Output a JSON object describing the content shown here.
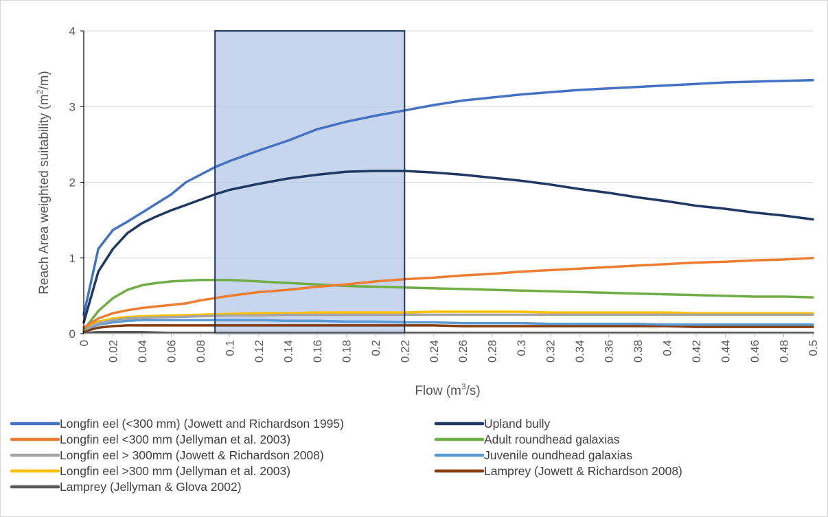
{
  "chart_data": {
    "type": "line",
    "title": "",
    "xlabel": "Flow (m³/s)",
    "xlabel_base": "Flow (m",
    "xlabel_sup": "3",
    "xlabel_end": "/s)",
    "ylabel": "Reach Area weighted suitability (m²/m)",
    "ylabel_base": "Reach Area weighted suitability (m",
    "ylabel_sup": "2",
    "ylabel_end": "/m)",
    "xlim": [
      0,
      0.5
    ],
    "ylim": [
      0,
      4
    ],
    "y_ticks": [
      "0",
      "1",
      "2",
      "3",
      "4"
    ],
    "x_ticks": [
      "0",
      "0.02",
      "0.04",
      "0.06",
      "0.08",
      "0.1",
      "0.12",
      "0.14",
      "0.16",
      "0.18",
      "0.2",
      "0.22",
      "0.24",
      "0.26",
      "0.28",
      "0.3",
      "0.32",
      "0.34",
      "0.36",
      "0.38",
      "0.4",
      "0.42",
      "0.44",
      "0.46",
      "0.48",
      "0.5"
    ],
    "grid": "horizontal",
    "legend_position": "bottom",
    "highlight_range": {
      "x": [
        0.09,
        0.22
      ],
      "y": [
        0,
        4
      ],
      "color": "#b4c7e7",
      "border": "#1f3864"
    },
    "series": [
      {
        "name": "Longfin eel (<300 mm) (Jowett and Richardson 1995)",
        "color": "#4472c4",
        "x": [
          0,
          0.01,
          0.02,
          0.03,
          0.04,
          0.05,
          0.06,
          0.07,
          0.08,
          0.09,
          0.1,
          0.12,
          0.14,
          0.16,
          0.18,
          0.2,
          0.22,
          0.24,
          0.26,
          0.28,
          0.3,
          0.32,
          0.34,
          0.36,
          0.38,
          0.4,
          0.42,
          0.44,
          0.46,
          0.48,
          0.5
        ],
        "y": [
          0.25,
          1.12,
          1.37,
          1.48,
          1.6,
          1.72,
          1.84,
          2.0,
          2.1,
          2.2,
          2.28,
          2.42,
          2.55,
          2.7,
          2.8,
          2.88,
          2.95,
          3.02,
          3.08,
          3.12,
          3.16,
          3.19,
          3.22,
          3.24,
          3.26,
          3.28,
          3.3,
          3.32,
          3.33,
          3.34,
          3.35
        ]
      },
      {
        "name": "Upland bully",
        "color": "#1f3864",
        "x": [
          0,
          0.01,
          0.02,
          0.03,
          0.04,
          0.05,
          0.06,
          0.07,
          0.08,
          0.09,
          0.1,
          0.12,
          0.14,
          0.16,
          0.18,
          0.2,
          0.22,
          0.24,
          0.26,
          0.28,
          0.3,
          0.32,
          0.34,
          0.36,
          0.38,
          0.4,
          0.42,
          0.44,
          0.46,
          0.48,
          0.5
        ],
        "y": [
          0.15,
          0.82,
          1.12,
          1.33,
          1.46,
          1.55,
          1.63,
          1.7,
          1.77,
          1.84,
          1.9,
          1.98,
          2.05,
          2.1,
          2.14,
          2.15,
          2.15,
          2.13,
          2.1,
          2.06,
          2.02,
          1.97,
          1.91,
          1.86,
          1.8,
          1.75,
          1.69,
          1.65,
          1.6,
          1.56,
          1.51
        ]
      },
      {
        "name": "Longfin eel <300 mm (Jellyman et al. 2003)",
        "color": "#ed7d31",
        "x": [
          0,
          0.01,
          0.02,
          0.03,
          0.04,
          0.05,
          0.06,
          0.07,
          0.08,
          0.09,
          0.1,
          0.12,
          0.14,
          0.16,
          0.18,
          0.2,
          0.22,
          0.24,
          0.26,
          0.28,
          0.3,
          0.32,
          0.34,
          0.36,
          0.38,
          0.4,
          0.42,
          0.44,
          0.46,
          0.48,
          0.5
        ],
        "y": [
          0.08,
          0.2,
          0.27,
          0.31,
          0.34,
          0.36,
          0.38,
          0.4,
          0.44,
          0.47,
          0.5,
          0.55,
          0.58,
          0.62,
          0.65,
          0.69,
          0.72,
          0.74,
          0.77,
          0.79,
          0.82,
          0.84,
          0.86,
          0.88,
          0.9,
          0.92,
          0.94,
          0.95,
          0.97,
          0.98,
          1.0
        ]
      },
      {
        "name": "Adult roundhead galaxias",
        "color": "#70ad47",
        "x": [
          0,
          0.01,
          0.02,
          0.03,
          0.04,
          0.05,
          0.06,
          0.07,
          0.08,
          0.09,
          0.1,
          0.12,
          0.14,
          0.16,
          0.18,
          0.2,
          0.22,
          0.24,
          0.26,
          0.28,
          0.3,
          0.32,
          0.34,
          0.36,
          0.38,
          0.4,
          0.42,
          0.44,
          0.46,
          0.48,
          0.5
        ],
        "y": [
          0.05,
          0.3,
          0.47,
          0.58,
          0.64,
          0.67,
          0.69,
          0.7,
          0.71,
          0.71,
          0.71,
          0.69,
          0.67,
          0.65,
          0.63,
          0.62,
          0.61,
          0.6,
          0.59,
          0.58,
          0.57,
          0.56,
          0.55,
          0.54,
          0.53,
          0.52,
          0.51,
          0.5,
          0.49,
          0.49,
          0.48
        ]
      },
      {
        "name": "Longfin eel > 300mm (Jowett & Richardson 2008)",
        "color": "#a5a5a5",
        "x": [
          0,
          0.01,
          0.02,
          0.03,
          0.04,
          0.06,
          0.08,
          0.1,
          0.12,
          0.14,
          0.16,
          0.18,
          0.2,
          0.22,
          0.24,
          0.26,
          0.28,
          0.3,
          0.32,
          0.34,
          0.36,
          0.38,
          0.4,
          0.42,
          0.44,
          0.46,
          0.48,
          0.5
        ],
        "y": [
          0.05,
          0.14,
          0.18,
          0.2,
          0.21,
          0.22,
          0.23,
          0.24,
          0.24,
          0.25,
          0.25,
          0.25,
          0.25,
          0.25,
          0.25,
          0.25,
          0.25,
          0.25,
          0.25,
          0.25,
          0.25,
          0.25,
          0.25,
          0.25,
          0.25,
          0.25,
          0.25,
          0.25
        ]
      },
      {
        "name": "Juvenile oundhead galaxias",
        "color": "#5b9bd5",
        "x": [
          0,
          0.01,
          0.02,
          0.03,
          0.04,
          0.06,
          0.08,
          0.1,
          0.12,
          0.14,
          0.16,
          0.18,
          0.2,
          0.22,
          0.24,
          0.26,
          0.28,
          0.3,
          0.32,
          0.34,
          0.36,
          0.38,
          0.4,
          0.42,
          0.44,
          0.46,
          0.48,
          0.5
        ],
        "y": [
          0.05,
          0.12,
          0.15,
          0.17,
          0.18,
          0.18,
          0.18,
          0.18,
          0.18,
          0.17,
          0.17,
          0.16,
          0.16,
          0.15,
          0.15,
          0.14,
          0.14,
          0.14,
          0.13,
          0.13,
          0.13,
          0.13,
          0.12,
          0.12,
          0.12,
          0.12,
          0.12,
          0.12
        ]
      },
      {
        "name": "Longfin eel >300 mm (Jellyman et al. 2003)",
        "color": "#ffc000",
        "x": [
          0,
          0.01,
          0.02,
          0.03,
          0.04,
          0.06,
          0.08,
          0.1,
          0.12,
          0.14,
          0.16,
          0.18,
          0.2,
          0.22,
          0.24,
          0.26,
          0.28,
          0.3,
          0.32,
          0.34,
          0.36,
          0.38,
          0.4,
          0.42,
          0.44,
          0.46,
          0.48,
          0.5
        ],
        "y": [
          0.06,
          0.16,
          0.2,
          0.22,
          0.23,
          0.24,
          0.25,
          0.26,
          0.27,
          0.27,
          0.28,
          0.28,
          0.28,
          0.28,
          0.29,
          0.29,
          0.29,
          0.29,
          0.28,
          0.28,
          0.28,
          0.28,
          0.28,
          0.27,
          0.27,
          0.27,
          0.27,
          0.27
        ]
      },
      {
        "name": "Lamprey (Jowett & Richardson 2008)",
        "color": "#843c0c",
        "x": [
          0,
          0.01,
          0.02,
          0.03,
          0.04,
          0.06,
          0.08,
          0.1,
          0.12,
          0.14,
          0.16,
          0.18,
          0.2,
          0.22,
          0.24,
          0.26,
          0.28,
          0.3,
          0.32,
          0.34,
          0.36,
          0.38,
          0.4,
          0.42,
          0.44,
          0.46,
          0.48,
          0.5
        ],
        "y": [
          0.03,
          0.08,
          0.1,
          0.11,
          0.11,
          0.11,
          0.11,
          0.11,
          0.11,
          0.11,
          0.11,
          0.11,
          0.11,
          0.11,
          0.11,
          0.1,
          0.1,
          0.1,
          0.1,
          0.1,
          0.1,
          0.1,
          0.1,
          0.09,
          0.09,
          0.09,
          0.09,
          0.09
        ]
      },
      {
        "name": "Lamprey (Jellyman & Glova 2002)",
        "color": "#595959",
        "x": [
          0,
          0.01,
          0.02,
          0.04,
          0.06,
          0.08,
          0.1,
          0.15,
          0.2,
          0.25,
          0.3,
          0.35,
          0.4,
          0.45,
          0.5
        ],
        "y": [
          0.01,
          0.02,
          0.02,
          0.02,
          0.01,
          0.01,
          0.01,
          0.01,
          0.01,
          0.01,
          0.01,
          0.01,
          0.01,
          0.01,
          0.01
        ]
      }
    ]
  }
}
